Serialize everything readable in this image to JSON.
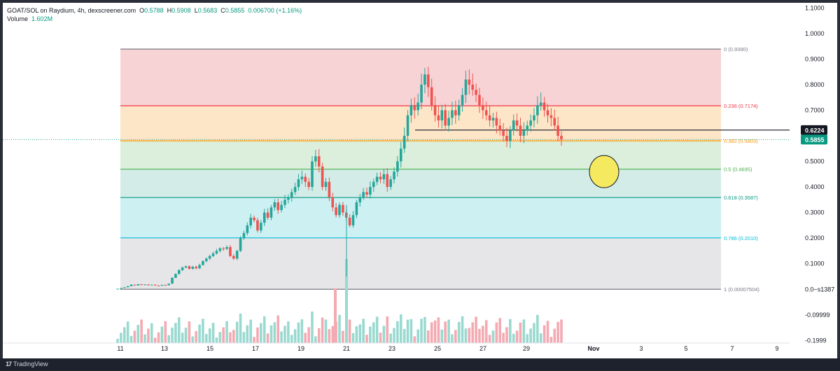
{
  "legend": {
    "symbol": "GOAT/SOL on Raydium, 4h, dexscreener.com",
    "o_label": "O",
    "o_val": "0.5788",
    "h_label": "H",
    "h_val": "0.5908",
    "l_label": "L",
    "l_val": "0.5683",
    "c_label": "C",
    "c_val": "0.5855",
    "change": "0.006700 (+1.16%)",
    "volume_label": "Volume",
    "volume_val": "1.602M"
  },
  "brand": {
    "logo": "17",
    "name": "TradingView"
  },
  "colors": {
    "up": "#26a69a",
    "down": "#ef5350",
    "vol_up": "#9ad9d0",
    "vol_down": "#f4aab2",
    "price_tag_last": "#089981",
    "price_tag_line": "#131722"
  },
  "chart_data": {
    "type": "candlestick",
    "y_ticks": [
      "1.1000",
      "1.0000",
      "0.9000",
      "0.8000",
      "0.7000",
      "0.6000",
      "0.5000",
      "0.4000",
      "0.3000",
      "0.2000",
      "0.1000",
      "0.0−s1387",
      "-0.09999",
      "-0.1999"
    ],
    "x_ticks": [
      "11",
      "13",
      "15",
      "17",
      "19",
      "21",
      "23",
      "25",
      "27",
      "29",
      "Nov",
      "3",
      "5",
      "7",
      "9"
    ],
    "ylim": [
      -0.21,
      1.12
    ],
    "fib_levels": [
      {
        "label": "0 (0.9390)",
        "value": 0.939,
        "color": "#787b86"
      },
      {
        "label": "0.236 (0.7174)",
        "value": 0.7174,
        "color": "#f23645"
      },
      {
        "label": "0.382 (0.5803)",
        "value": 0.5803,
        "color": "#ff9800"
      },
      {
        "label": "0.5 (0.4695)",
        "value": 0.4695,
        "color": "#4caf50"
      },
      {
        "label": "0.618 (0.3587)",
        "value": 0.3587,
        "color": "#089981"
      },
      {
        "label": "0.786 (0.2010)",
        "value": 0.201,
        "color": "#00bcd4"
      },
      {
        "label": "1 (0.00007504)",
        "value": 7.504e-05,
        "color": "#787b86"
      }
    ],
    "fib_zones": [
      {
        "from": 0.939,
        "to": 0.7174,
        "color": "#f8d3d6"
      },
      {
        "from": 0.7174,
        "to": 0.5803,
        "color": "#fde6c8"
      },
      {
        "from": 0.5803,
        "to": 0.4695,
        "color": "#dcefdc"
      },
      {
        "from": 0.4695,
        "to": 0.3587,
        "color": "#d3ece8"
      },
      {
        "from": 0.3587,
        "to": 0.201,
        "color": "#cdf0f3"
      },
      {
        "from": 0.201,
        "to": 7.504e-05,
        "color": "#e6e6e8"
      }
    ],
    "horizontal_line": {
      "value": 0.6224,
      "label": "0.6224"
    },
    "last_price": {
      "value": 0.5855,
      "label": "0.5855"
    },
    "highlight_target": {
      "value": 0.46
    },
    "candles_closes": [
      0.002,
      0.005,
      0.008,
      0.012,
      0.018,
      0.015,
      0.02,
      0.017,
      0.019,
      0.016,
      0.018,
      0.015,
      0.014,
      0.017,
      0.016,
      0.022,
      0.045,
      0.06,
      0.075,
      0.085,
      0.09,
      0.08,
      0.088,
      0.082,
      0.095,
      0.11,
      0.12,
      0.13,
      0.14,
      0.15,
      0.16,
      0.158,
      0.165,
      0.13,
      0.12,
      0.15,
      0.2,
      0.22,
      0.25,
      0.28,
      0.27,
      0.23,
      0.26,
      0.3,
      0.28,
      0.32,
      0.34,
      0.31,
      0.33,
      0.35,
      0.36,
      0.38,
      0.4,
      0.43,
      0.44,
      0.42,
      0.4,
      0.5,
      0.52,
      0.48,
      0.4,
      0.42,
      0.36,
      0.32,
      0.29,
      0.33,
      0.3,
      0.28,
      0.25,
      0.29,
      0.34,
      0.36,
      0.38,
      0.37,
      0.4,
      0.42,
      0.44,
      0.43,
      0.45,
      0.4,
      0.43,
      0.46,
      0.5,
      0.55,
      0.6,
      0.68,
      0.72,
      0.7,
      0.73,
      0.8,
      0.84,
      0.79,
      0.72,
      0.68,
      0.66,
      0.7,
      0.64,
      0.67,
      0.7,
      0.68,
      0.72,
      0.76,
      0.82,
      0.8,
      0.78,
      0.76,
      0.72,
      0.7,
      0.68,
      0.66,
      0.67,
      0.64,
      0.62,
      0.6,
      0.58,
      0.62,
      0.66,
      0.64,
      0.6,
      0.62,
      0.64,
      0.66,
      0.68,
      0.72,
      0.73,
      0.7,
      0.68,
      0.67,
      0.64,
      0.6,
      0.5855
    ],
    "volume_note": "relative volume bars"
  }
}
